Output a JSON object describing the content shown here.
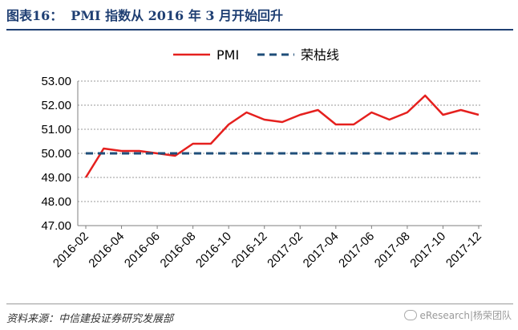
{
  "header": {
    "figure_no": "图表16：",
    "title": "PMI 指数从 2016 年 3 月开始回升"
  },
  "footer": {
    "source": "资料来源：中信建投证券研究发展部",
    "watermark": "eResearch|杨荣团队"
  },
  "chart_data": {
    "type": "line",
    "title": "",
    "xlabel": "",
    "ylabel": "",
    "ylim": [
      47.0,
      53.0
    ],
    "yticks": [
      "47.00",
      "48.00",
      "49.00",
      "50.00",
      "51.00",
      "52.00",
      "53.00"
    ],
    "x": [
      "2016-02",
      "2016-03",
      "2016-04",
      "2016-05",
      "2016-06",
      "2016-07",
      "2016-08",
      "2016-09",
      "2016-10",
      "2016-11",
      "2016-12",
      "2017-01",
      "2017-02",
      "2017-03",
      "2017-04",
      "2017-05",
      "2017-06",
      "2017-07",
      "2017-08",
      "2017-09",
      "2017-10",
      "2017-11",
      "2017-12"
    ],
    "xtick_labels": [
      "2016-02",
      "2016-04",
      "2016-06",
      "2016-08",
      "2016-10",
      "2016-12",
      "2017-02",
      "2017-04",
      "2017-06",
      "2017-08",
      "2017-10",
      "2017-12"
    ],
    "grid": true,
    "legend_position": "top-center",
    "series": [
      {
        "name": "PMI",
        "color": "#e5201e",
        "style": "solid",
        "values": [
          49.0,
          50.2,
          50.1,
          50.1,
          50.0,
          49.9,
          50.4,
          50.4,
          51.2,
          51.7,
          51.4,
          51.3,
          51.6,
          51.8,
          51.2,
          51.2,
          51.7,
          51.4,
          51.7,
          52.4,
          51.6,
          51.8,
          51.6
        ]
      },
      {
        "name": "荣枯线",
        "color": "#1f4e79",
        "style": "dashed",
        "values": [
          50.0,
          50.0,
          50.0,
          50.0,
          50.0,
          50.0,
          50.0,
          50.0,
          50.0,
          50.0,
          50.0,
          50.0,
          50.0,
          50.0,
          50.0,
          50.0,
          50.0,
          50.0,
          50.0,
          50.0,
          50.0,
          50.0,
          50.0
        ]
      }
    ]
  }
}
